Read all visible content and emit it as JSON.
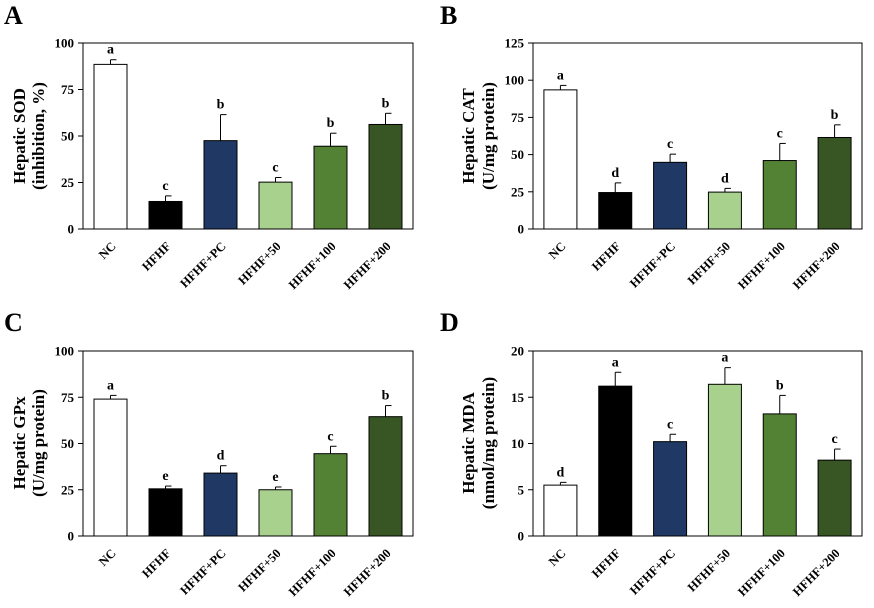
{
  "chart_data": [
    {
      "panel": "A",
      "type": "bar",
      "ylabel": [
        "Hepatic SOD",
        "(inhibition, %)"
      ],
      "categories": [
        "NC",
        "HFHF",
        "HFHF+PC",
        "HFHF+50",
        "HFHF+100",
        "HFHF+200"
      ],
      "values": [
        88.5,
        14.8,
        47.5,
        25.2,
        44.5,
        56.2
      ],
      "errors": [
        2.5,
        3.0,
        14.0,
        2.5,
        7.0,
        6.0
      ],
      "letters": [
        "a",
        "c",
        "b",
        "c",
        "b",
        "b"
      ],
      "ylim": [
        0,
        100
      ],
      "yticks": [
        "0",
        "25",
        "50",
        "75",
        "100"
      ]
    },
    {
      "panel": "B",
      "type": "bar",
      "ylabel": [
        "Hepatic CAT",
        "(U/mg protein)"
      ],
      "categories": [
        "NC",
        "HFHF",
        "HFHF+PC",
        "HFHF+50",
        "HFHF+100",
        "HFHF+200"
      ],
      "values": [
        93.5,
        24.5,
        44.8,
        24.8,
        46.0,
        61.5
      ],
      "errors": [
        3.0,
        6.5,
        5.5,
        2.5,
        11.5,
        8.5
      ],
      "letters": [
        "a",
        "d",
        "c",
        "d",
        "c",
        "b"
      ],
      "ylim": [
        0,
        125
      ],
      "yticks": [
        "0",
        "25",
        "50",
        "75",
        "100",
        "125"
      ]
    },
    {
      "panel": "C",
      "type": "bar",
      "ylabel": [
        "Hepatic GPx",
        "(U/mg protein)"
      ],
      "categories": [
        "NC",
        "HFHF",
        "HFHF+PC",
        "HFHF+50",
        "HFHF+100",
        "HFHF+200"
      ],
      "values": [
        74.0,
        25.5,
        34.0,
        25.0,
        44.5,
        64.5
      ],
      "errors": [
        2.0,
        1.5,
        4.0,
        1.5,
        4.0,
        6.0
      ],
      "letters": [
        "a",
        "e",
        "d",
        "e",
        "c",
        "b"
      ],
      "ylim": [
        0,
        100
      ],
      "yticks": [
        "0",
        "25",
        "50",
        "75",
        "100"
      ]
    },
    {
      "panel": "D",
      "type": "bar",
      "ylabel": [
        "Hepatic MDA",
        "(nmol/mg protein)"
      ],
      "categories": [
        "NC",
        "HFHF",
        "HFHF+PC",
        "HFHF+50",
        "HFHF+100",
        "HFHF+200"
      ],
      "values": [
        5.5,
        16.2,
        10.2,
        16.4,
        13.2,
        8.2
      ],
      "errors": [
        0.3,
        1.5,
        0.8,
        1.8,
        2.0,
        1.2
      ],
      "letters": [
        "d",
        "a",
        "c",
        "a",
        "b",
        "c"
      ],
      "ylim": [
        0,
        20
      ],
      "yticks": [
        "0",
        "5",
        "10",
        "15",
        "20"
      ]
    }
  ],
  "colors": {
    "NC": "#ffffff",
    "HFHF": "#000000",
    "HFHF+PC": "#1f3864",
    "HFHF+50": "#a9d18e",
    "HFHF+100": "#548235",
    "HFHF+200": "#375623"
  },
  "bar_colors": [
    "#ffffff",
    "#000000",
    "#1f3864",
    "#a9d18e",
    "#548235",
    "#375623"
  ]
}
